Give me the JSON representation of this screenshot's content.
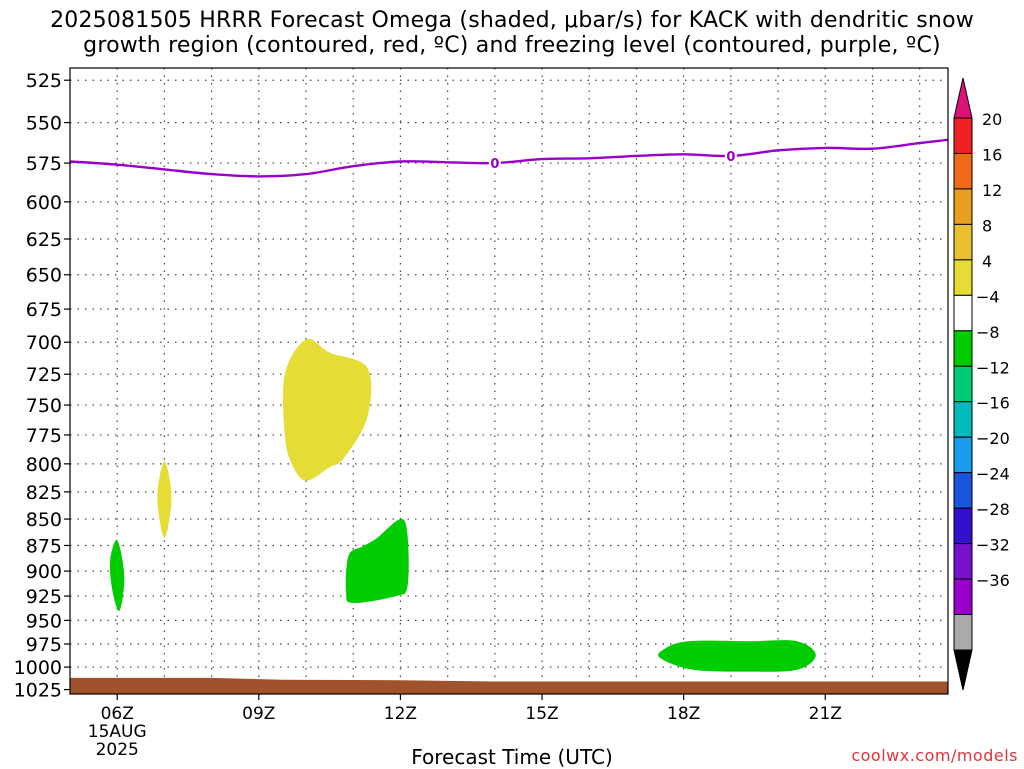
{
  "title": {
    "line1": "2025081505 HRRR Forecast Omega (shaded, μbar/s) for KACK with dendritic snow",
    "line2": "growth region (contoured, red, ºC) and freezing level (contoured, purple, ºC)"
  },
  "footer": {
    "xlabel": "Forecast Time (UTC)",
    "credit": "coolwx.com/models"
  },
  "colors": {
    "freezing_level": "#9900cc",
    "ground": "#a0522d",
    "grid": "#444444"
  },
  "chart_data": {
    "type": "heatmap",
    "x_axis": {
      "unit": "hour_utc",
      "range": [
        5.0,
        23.6
      ],
      "ticks": [
        {
          "value": 6,
          "label": "06Z",
          "sublabels": [
            "15AUG",
            "2025"
          ]
        },
        {
          "value": 9,
          "label": "09Z"
        },
        {
          "value": 12,
          "label": "12Z"
        },
        {
          "value": 15,
          "label": "15Z"
        },
        {
          "value": 18,
          "label": "18Z"
        },
        {
          "value": 21,
          "label": "21Z"
        }
      ],
      "gridlines": [
        6,
        7,
        8,
        9,
        10,
        11,
        12,
        13,
        14,
        15,
        16,
        17,
        18,
        19,
        20,
        21,
        22,
        23
      ]
    },
    "y_axis": {
      "unit": "hPa",
      "scale": "log",
      "reversed": true,
      "range": [
        518,
        1030
      ],
      "ticks": [
        525,
        550,
        575,
        600,
        625,
        650,
        675,
        700,
        725,
        750,
        775,
        800,
        825,
        850,
        875,
        900,
        925,
        950,
        975,
        1000,
        1025
      ]
    },
    "grid": true,
    "colorbar": {
      "levels": [
        "20",
        "16",
        "12",
        "8",
        "4",
        "−4",
        "−8",
        "−12",
        "−16",
        "−20",
        "−24",
        "−28",
        "−32",
        "−36"
      ],
      "bands": [
        "#ee2222",
        "#f06a1a",
        "#e8a020",
        "#e8c030",
        "#e5dd35",
        "#ffffff",
        "#00cc00",
        "#00cc77",
        "#00bbbb",
        "#1a9cee",
        "#1a55dd",
        "#3311cc",
        "#7711cc",
        "#9900cc",
        "#aaaaaa"
      ],
      "top_arrow": "#dd1177",
      "bottom_arrow": "#000000"
    },
    "freezing_level": {
      "label": "0",
      "points": [
        [
          5.0,
          574
        ],
        [
          6.0,
          576
        ],
        [
          7.0,
          579
        ],
        [
          8.0,
          582
        ],
        [
          9.0,
          583.5
        ],
        [
          10.0,
          582
        ],
        [
          11.0,
          577
        ],
        [
          12.0,
          574
        ],
        [
          13.0,
          574.5
        ],
        [
          14.0,
          575
        ],
        [
          15.0,
          572.5
        ],
        [
          16.0,
          572
        ],
        [
          17.0,
          570.5
        ],
        [
          18.0,
          569.5
        ],
        [
          19.0,
          570.5
        ],
        [
          20.0,
          567
        ],
        [
          21.0,
          565.5
        ],
        [
          22.0,
          566
        ],
        [
          23.0,
          562.5
        ],
        [
          23.6,
          560.5
        ]
      ],
      "label_positions": [
        [
          14.0,
          575
        ],
        [
          19.0,
          570.5
        ]
      ]
    },
    "regions": [
      {
        "name": "omega-positive-4-8-a",
        "color": "#e5dd35",
        "points": [
          [
            10.0,
            698
          ],
          [
            10.5,
            708
          ],
          [
            11.3,
            720
          ],
          [
            11.3,
            760
          ],
          [
            10.8,
            795
          ],
          [
            10.5,
            803
          ],
          [
            10.0,
            815
          ],
          [
            9.7,
            800
          ],
          [
            9.55,
            775
          ],
          [
            9.55,
            725
          ]
        ]
      },
      {
        "name": "omega-positive-4-8-b",
        "color": "#e5dd35",
        "points": [
          [
            7.0,
            798
          ],
          [
            7.15,
            830
          ],
          [
            7.0,
            868
          ],
          [
            6.85,
            830
          ]
        ]
      },
      {
        "name": "omega-negative-4-8-a",
        "color": "#00cc00",
        "points": [
          [
            6.0,
            870
          ],
          [
            6.15,
            905
          ],
          [
            6.05,
            940
          ],
          [
            5.9,
            920
          ],
          [
            5.85,
            890
          ]
        ]
      },
      {
        "name": "omega-negative-4-8-b",
        "color": "#00cc00",
        "points": [
          [
            12.0,
            850
          ],
          [
            12.15,
            865
          ],
          [
            12.15,
            915
          ],
          [
            11.9,
            925
          ],
          [
            11.0,
            932
          ],
          [
            10.85,
            922
          ],
          [
            10.9,
            885
          ],
          [
            11.2,
            876
          ],
          [
            11.5,
            868
          ]
        ]
      },
      {
        "name": "omega-negative-4-8-c",
        "color": "#00cc00",
        "points": [
          [
            18.1,
            972
          ],
          [
            19.4,
            972
          ],
          [
            20.4,
            972
          ],
          [
            20.8,
            987
          ],
          [
            20.4,
            1003
          ],
          [
            19.4,
            1005
          ],
          [
            18.2,
            1003
          ],
          [
            17.5,
            990
          ],
          [
            17.6,
            980
          ]
        ]
      }
    ],
    "ground": {
      "points": [
        [
          5.0,
          1012
        ],
        [
          8.0,
          1012
        ],
        [
          9.5,
          1014
        ],
        [
          12.0,
          1014.5
        ],
        [
          14.0,
          1016
        ],
        [
          16.0,
          1016
        ],
        [
          18.0,
          1016
        ],
        [
          21.0,
          1016
        ],
        [
          23.6,
          1016
        ]
      ]
    }
  }
}
